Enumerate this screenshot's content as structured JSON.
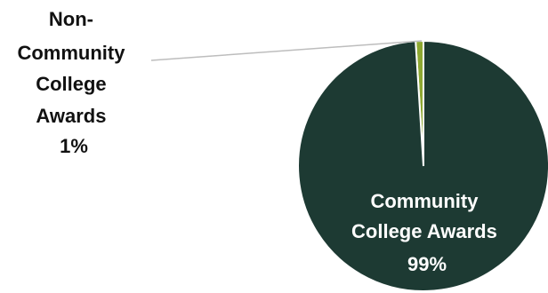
{
  "chart_data": {
    "type": "pie",
    "slices": [
      {
        "label_lines": [
          "Non-",
          "Community",
          "College",
          "Awards"
        ],
        "percent_label": "1%",
        "value": 1,
        "color": "#8ea832"
      },
      {
        "label_lines": [
          "Community",
          "College Awards"
        ],
        "percent_label": "99%",
        "value": 99,
        "color": "#1d3a33"
      }
    ],
    "label_text_colors": {
      "outside": "#111111",
      "inside": "#ffffff"
    },
    "leader_line_color": "#bdbdbd"
  }
}
